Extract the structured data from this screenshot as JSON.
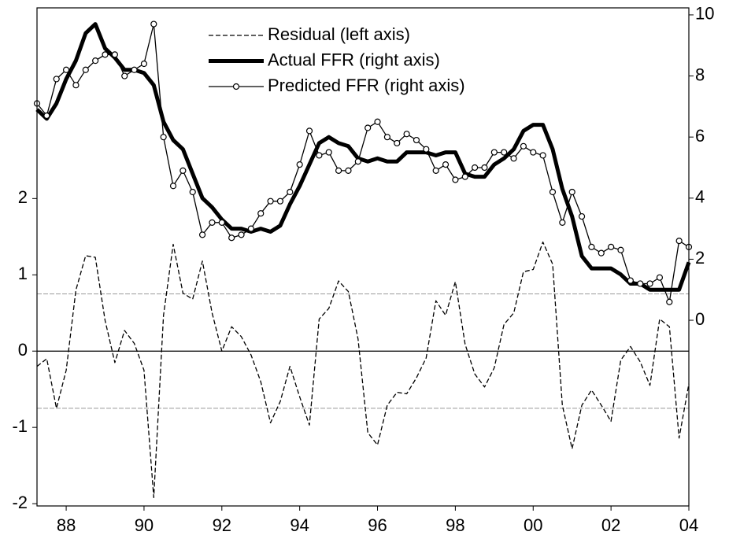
{
  "chart_data": {
    "type": "line",
    "categories": [
      null,
      null,
      null,
      "88",
      null,
      null,
      null,
      null,
      null,
      null,
      null,
      "90",
      null,
      null,
      null,
      null,
      null,
      null,
      null,
      "92",
      null,
      null,
      null,
      null,
      null,
      null,
      null,
      "94",
      null,
      null,
      null,
      null,
      null,
      null,
      null,
      "96",
      null,
      null,
      null,
      null,
      null,
      null,
      null,
      "98",
      null,
      null,
      null,
      null,
      null,
      null,
      null,
      "00",
      null,
      null,
      null,
      null,
      null,
      null,
      null,
      "02",
      null,
      null,
      null,
      null,
      null,
      null,
      null,
      "04"
    ],
    "series": [
      {
        "name": "Residual (left axis)",
        "color": "#000000",
        "style": "dashed",
        "axis": "y",
        "values": [
          -0.2,
          -0.1,
          -0.75,
          -0.25,
          0.8,
          1.25,
          1.23,
          0.4,
          -0.15,
          0.27,
          0.1,
          -0.25,
          -1.92,
          0.47,
          1.4,
          0.76,
          0.68,
          1.18,
          0.5,
          0.0,
          0.32,
          0.19,
          -0.05,
          -0.4,
          -0.94,
          -0.66,
          -0.2,
          -0.6,
          -0.97,
          0.42,
          0.56,
          0.92,
          0.78,
          0.16,
          -1.07,
          -1.23,
          -0.71,
          -0.54,
          -0.56,
          -0.35,
          -0.09,
          0.66,
          0.47,
          0.91,
          0.09,
          -0.3,
          -0.47,
          -0.22,
          0.35,
          0.5,
          1.04,
          1.07,
          1.43,
          1.14,
          -0.71,
          -1.28,
          -0.71,
          -0.51,
          -0.71,
          -0.92,
          -0.12,
          0.06,
          -0.14,
          -0.45,
          0.42,
          0.32,
          -1.14,
          -0.43
        ]
      },
      {
        "name": "Actual FFR (right axis)",
        "color": "#000000",
        "style": "thick",
        "axis": "y2",
        "values": [
          6.9,
          6.6,
          7.1,
          7.9,
          8.5,
          9.4,
          9.7,
          8.9,
          8.6,
          8.2,
          8.2,
          8.1,
          7.7,
          6.5,
          5.9,
          5.6,
          4.8,
          4.0,
          3.7,
          3.3,
          3.0,
          3.0,
          2.9,
          3.0,
          2.9,
          3.1,
          3.8,
          4.4,
          5.1,
          5.8,
          6.0,
          5.8,
          5.7,
          5.3,
          5.2,
          5.3,
          5.2,
          5.2,
          5.5,
          5.5,
          5.5,
          5.4,
          5.5,
          5.5,
          4.8,
          4.7,
          4.7,
          5.1,
          5.3,
          5.6,
          6.2,
          6.4,
          6.4,
          5.6,
          4.3,
          3.4,
          2.1,
          1.7,
          1.7,
          1.7,
          1.5,
          1.2,
          1.2,
          1.0,
          1.0,
          1.0,
          1.0,
          1.9
        ]
      },
      {
        "name": "Predicted FFR (right axis)",
        "color": "#000000",
        "style": "markers",
        "axis": "y2",
        "values": [
          7.1,
          6.7,
          7.9,
          8.2,
          7.7,
          8.2,
          8.5,
          8.7,
          8.7,
          8.0,
          8.2,
          8.4,
          9.7,
          6.0,
          4.4,
          4.9,
          4.2,
          2.8,
          3.2,
          3.2,
          2.7,
          2.8,
          3.0,
          3.5,
          3.9,
          3.9,
          4.2,
          5.1,
          6.2,
          5.4,
          5.5,
          4.9,
          4.9,
          5.2,
          6.3,
          6.5,
          6.0,
          5.8,
          6.1,
          5.9,
          5.6,
          4.9,
          5.1,
          4.6,
          4.7,
          5.0,
          5.0,
          5.5,
          5.5,
          5.3,
          5.7,
          5.5,
          5.4,
          4.2,
          3.2,
          4.2,
          3.4,
          2.4,
          2.2,
          2.4,
          2.3,
          1.3,
          1.2,
          1.2,
          1.4,
          0.6,
          2.6,
          2.4
        ]
      }
    ],
    "ylim": [
      -2.03,
      4.5
    ],
    "yticks": [
      -2,
      -1,
      0,
      1,
      2
    ],
    "y2lim": [
      -6.08,
      10.23
    ],
    "y2ticks": [
      0,
      2,
      4,
      6,
      8,
      10
    ],
    "band": [
      -0.75,
      0.75
    ],
    "zero_line": 0,
    "legend": "top"
  }
}
